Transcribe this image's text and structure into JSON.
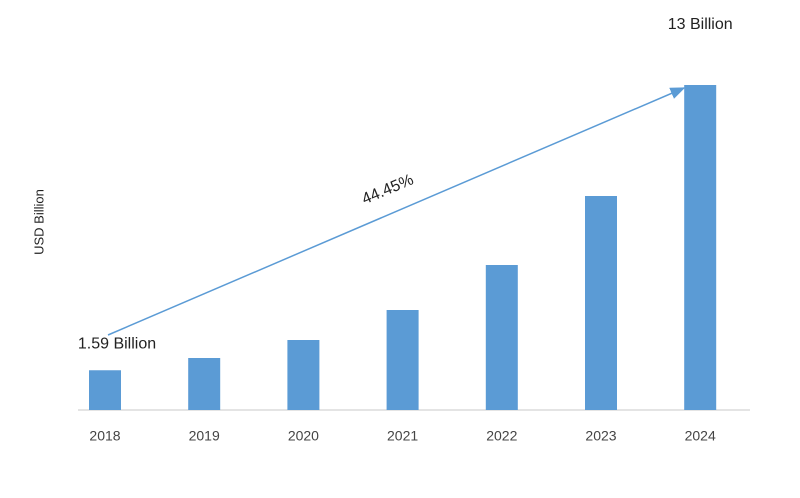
{
  "chart_data": {
    "type": "bar",
    "y_label": "USD Billion",
    "annotation": "44.45%",
    "categories": [
      "2018",
      "2019",
      "2020",
      "2021",
      "2022",
      "2023",
      "2024"
    ],
    "values": [
      1.59,
      2.08,
      2.8,
      4.0,
      5.8,
      8.56,
      13
    ],
    "value_labels": [
      "1.59 Billion",
      null,
      null,
      null,
      null,
      null,
      "13 Billion"
    ],
    "color": "#5b9bd5"
  }
}
